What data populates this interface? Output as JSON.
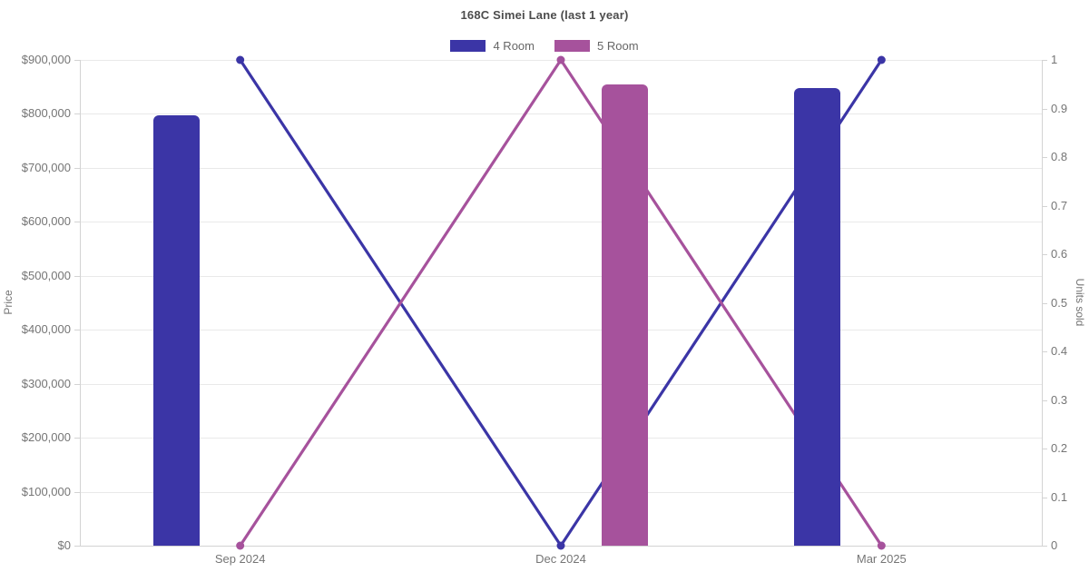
{
  "colors": {
    "four_room": "#3b35a6",
    "five_room": "#a6529c",
    "grid": "#e9e9e9",
    "axis_line": "#d3d3d3",
    "tick_text": "#757575",
    "title_text": "#4c4c4c",
    "legend_text": "#666666",
    "background": "#ffffff"
  },
  "chart_data": {
    "type": "bar+line (dual y-axis combo)",
    "title": "168C Simei Lane (last 1 year)",
    "categories": [
      "Sep 2024",
      "Dec 2024",
      "Mar 2025"
    ],
    "bar_series": [
      {
        "name": "4 Room",
        "yaxis": "left",
        "color": "#3b35a6",
        "values": [
          797000,
          null,
          848000
        ]
      },
      {
        "name": "5 Room",
        "yaxis": "left",
        "color": "#a6529c",
        "values": [
          null,
          854000,
          null
        ]
      }
    ],
    "line_series": [
      {
        "name": "4 Room",
        "yaxis": "right",
        "color": "#3b35a6",
        "values": [
          1,
          0,
          1
        ]
      },
      {
        "name": "5 Room",
        "yaxis": "right",
        "color": "#a6529c",
        "values": [
          0,
          1,
          0
        ]
      }
    ],
    "left_axis": {
      "label": "Price",
      "min": 0,
      "max": 900000,
      "tick_step": 100000,
      "tick_labels": [
        "$0",
        "$100,000",
        "$200,000",
        "$300,000",
        "$400,000",
        "$500,000",
        "$600,000",
        "$700,000",
        "$800,000",
        "$900,000"
      ]
    },
    "right_axis": {
      "label": "Units sold",
      "min": 0,
      "max": 1,
      "tick_step": 0.1,
      "tick_labels": [
        "0",
        "0.1",
        "0.2",
        "0.3",
        "0.4",
        "0.5",
        "0.6",
        "0.7",
        "0.8",
        "0.9",
        "1"
      ]
    },
    "x_axis": {
      "tick_labels": [
        "Sep 2024",
        "Dec 2024",
        "Mar 2025"
      ]
    },
    "legend": {
      "position": "top",
      "items": [
        {
          "label": "4 Room",
          "color": "#3b35a6"
        },
        {
          "label": "5 Room",
          "color": "#a6529c"
        }
      ]
    },
    "grid": "horizontal gridlines at each $100,000; no vertical gridlines",
    "legend_on": true
  }
}
